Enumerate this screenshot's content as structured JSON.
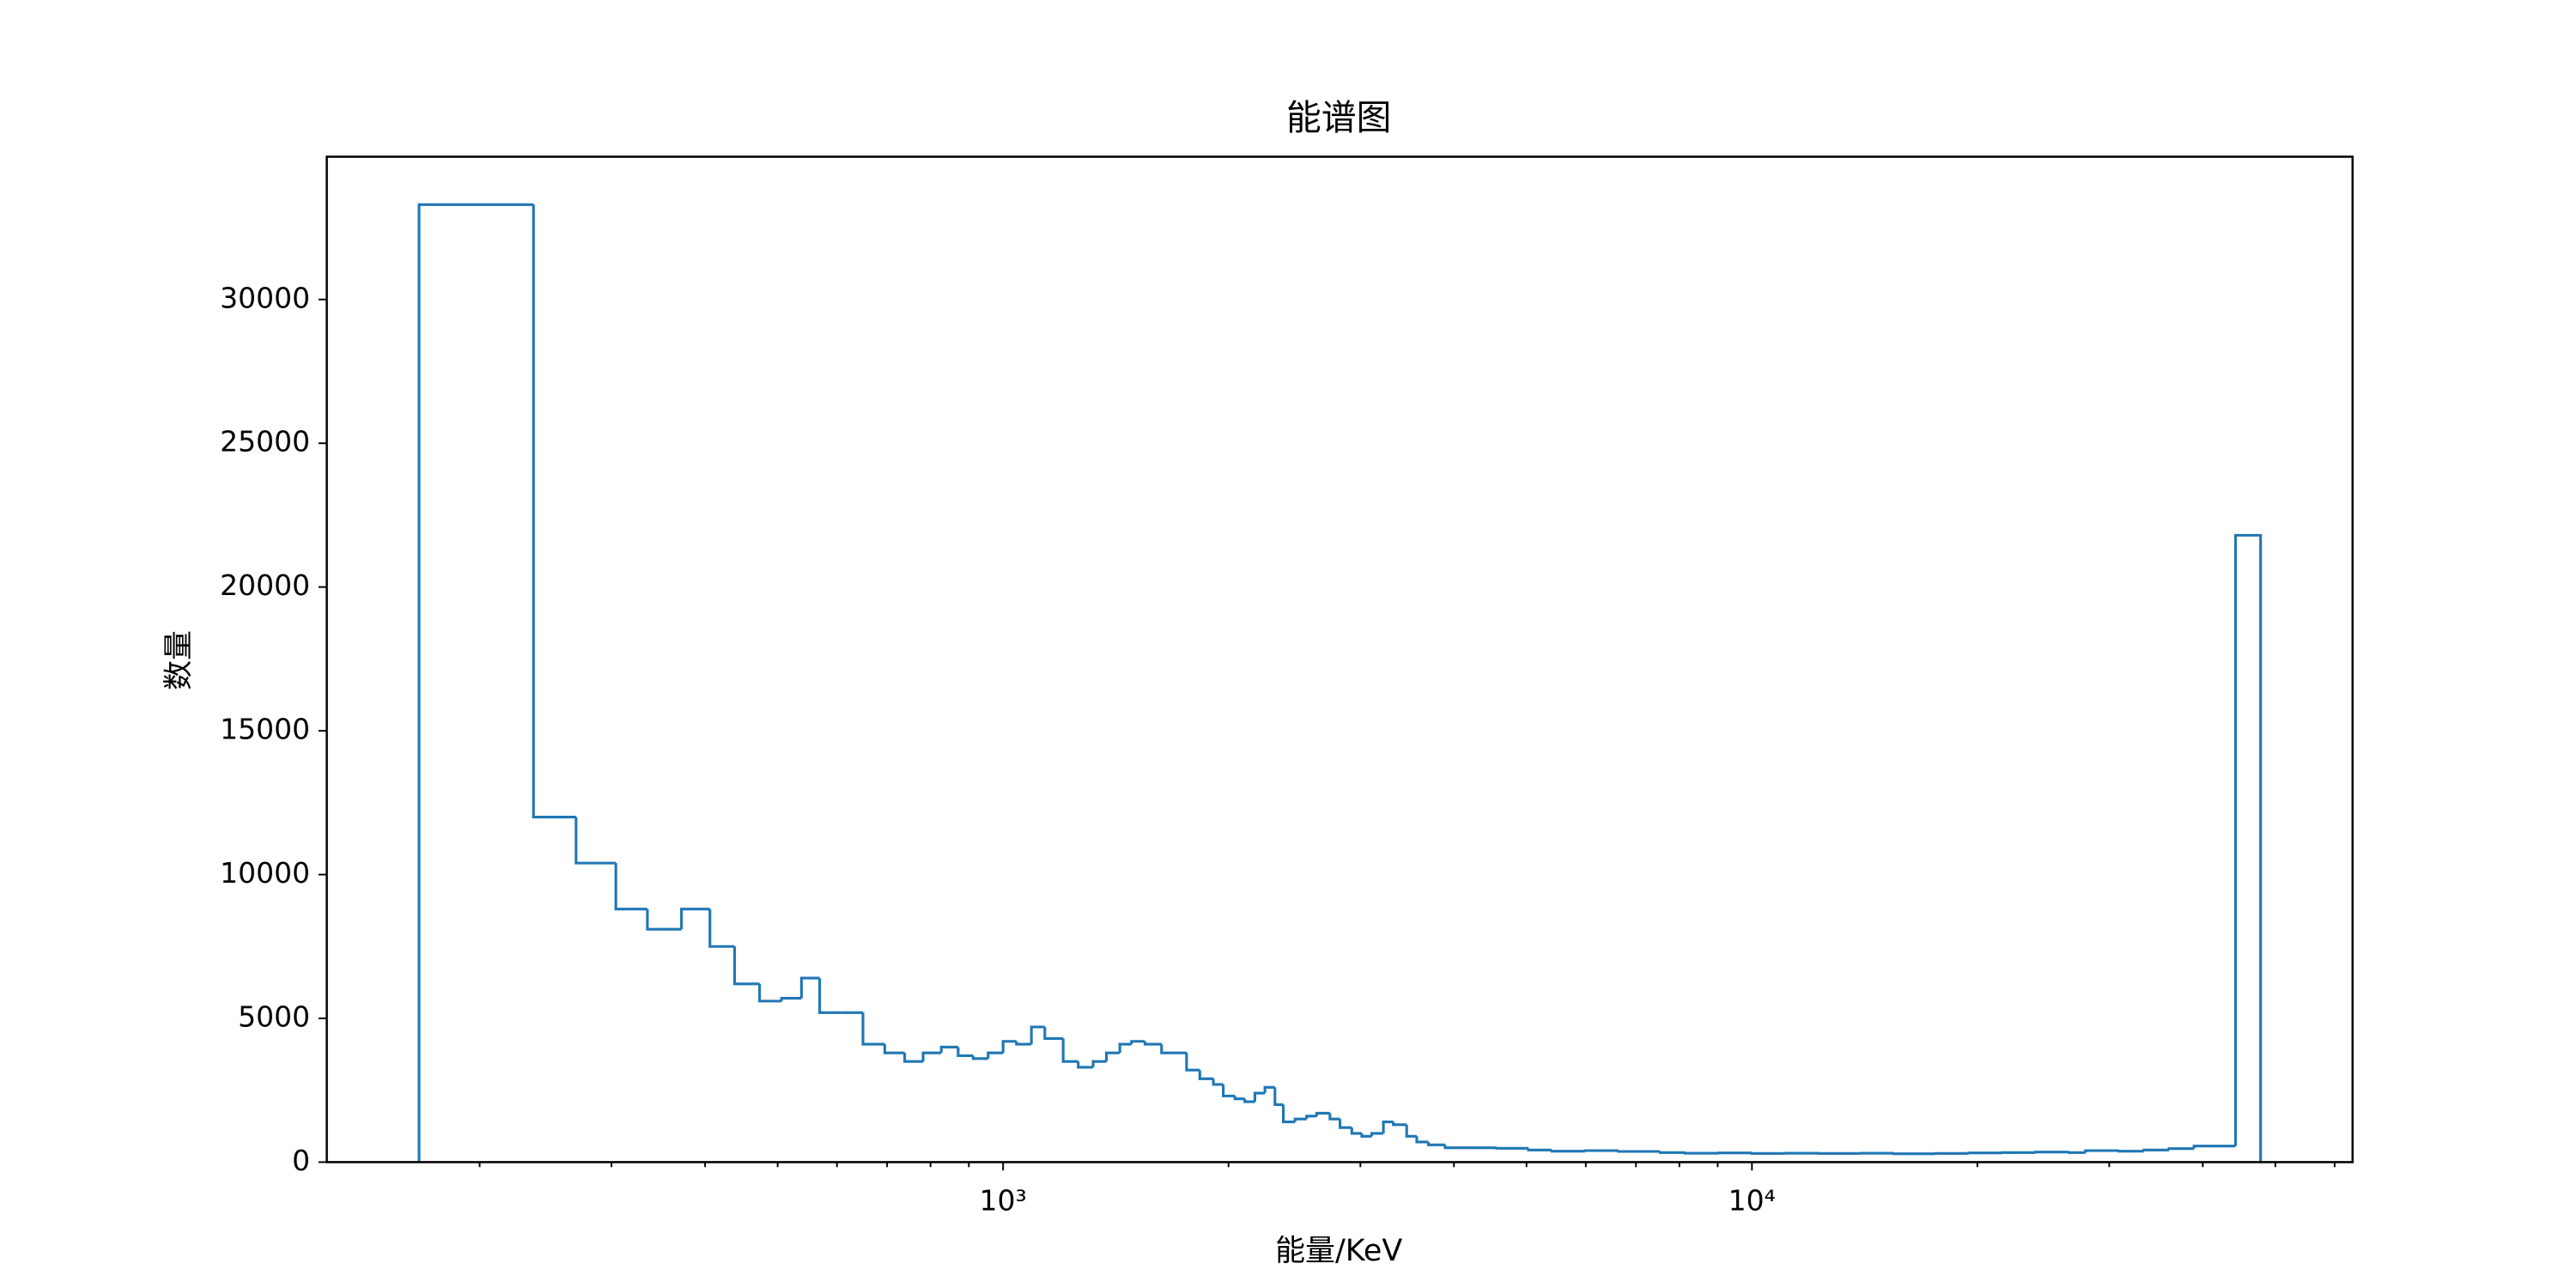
{
  "chart_data": {
    "type": "histogram",
    "title": "能谱图",
    "xlabel": "能量/KeV",
    "ylabel": "数量",
    "color": "#1f77b4",
    "xscale": "log",
    "bins": [
      166,
      236,
      269,
      304,
      335,
      372,
      406,
      438,
      473,
      506,
      538,
      569,
      608,
      650,
      695,
      739,
      782,
      827,
      871,
      912,
      955,
      1000,
      1042,
      1091,
      1137,
      1203,
      1260,
      1319,
      1374,
      1432,
      1484,
      1547,
      1628,
      1758,
      1831,
      1909,
      1968,
      2040,
      2103,
      2169,
      2237,
      2307,
      2367,
      2454,
      2543,
      2623,
      2732,
      2818,
      2922,
      3013,
      3107,
      3220,
      3320,
      3459,
      3568,
      3698,
      3893,
      4035,
      4562,
      5030,
      5405,
      5988,
      6634,
      7543,
      8145,
      9026,
      10000,
      11080,
      12280,
      13960,
      15470,
      17580,
      19480,
      21590,
      23910,
      26500,
      27890,
      30900,
      33370,
      36060,
      38930,
      44240,
      47780
    ],
    "values": [
      33300,
      12000,
      10400,
      8800,
      8100,
      8800,
      7500,
      6200,
      5600,
      5700,
      6400,
      5200,
      5200,
      4100,
      3800,
      3500,
      3800,
      4000,
      3700,
      3600,
      3800,
      4200,
      4100,
      4700,
      4300,
      3500,
      3300,
      3500,
      3800,
      4100,
      4200,
      4100,
      3800,
      3200,
      2900,
      2700,
      2300,
      2200,
      2100,
      2400,
      2600,
      2000,
      1400,
      1500,
      1600,
      1700,
      1500,
      1200,
      1000,
      900,
      1000,
      1400,
      1300,
      900,
      700,
      600,
      500,
      500,
      480,
      420,
      380,
      400,
      370,
      330,
      310,
      320,
      300,
      310,
      300,
      310,
      290,
      300,
      320,
      330,
      350,
      330,
      400,
      380,
      420,
      470,
      560,
      21800
    ],
    "xlim": [
      125,
      63400
    ],
    "ylim": [
      0,
      34965
    ],
    "xticks": [
      {
        "value": 1000,
        "label": "10³"
      },
      {
        "value": 10000,
        "label": "10⁴"
      }
    ],
    "xminorticks": [
      200,
      300,
      400,
      500,
      600,
      700,
      800,
      900,
      2000,
      3000,
      4000,
      5000,
      6000,
      7000,
      8000,
      9000,
      20000,
      30000,
      40000,
      50000,
      60000
    ],
    "yticks": [
      0,
      5000,
      10000,
      15000,
      20000,
      25000,
      30000
    ]
  }
}
